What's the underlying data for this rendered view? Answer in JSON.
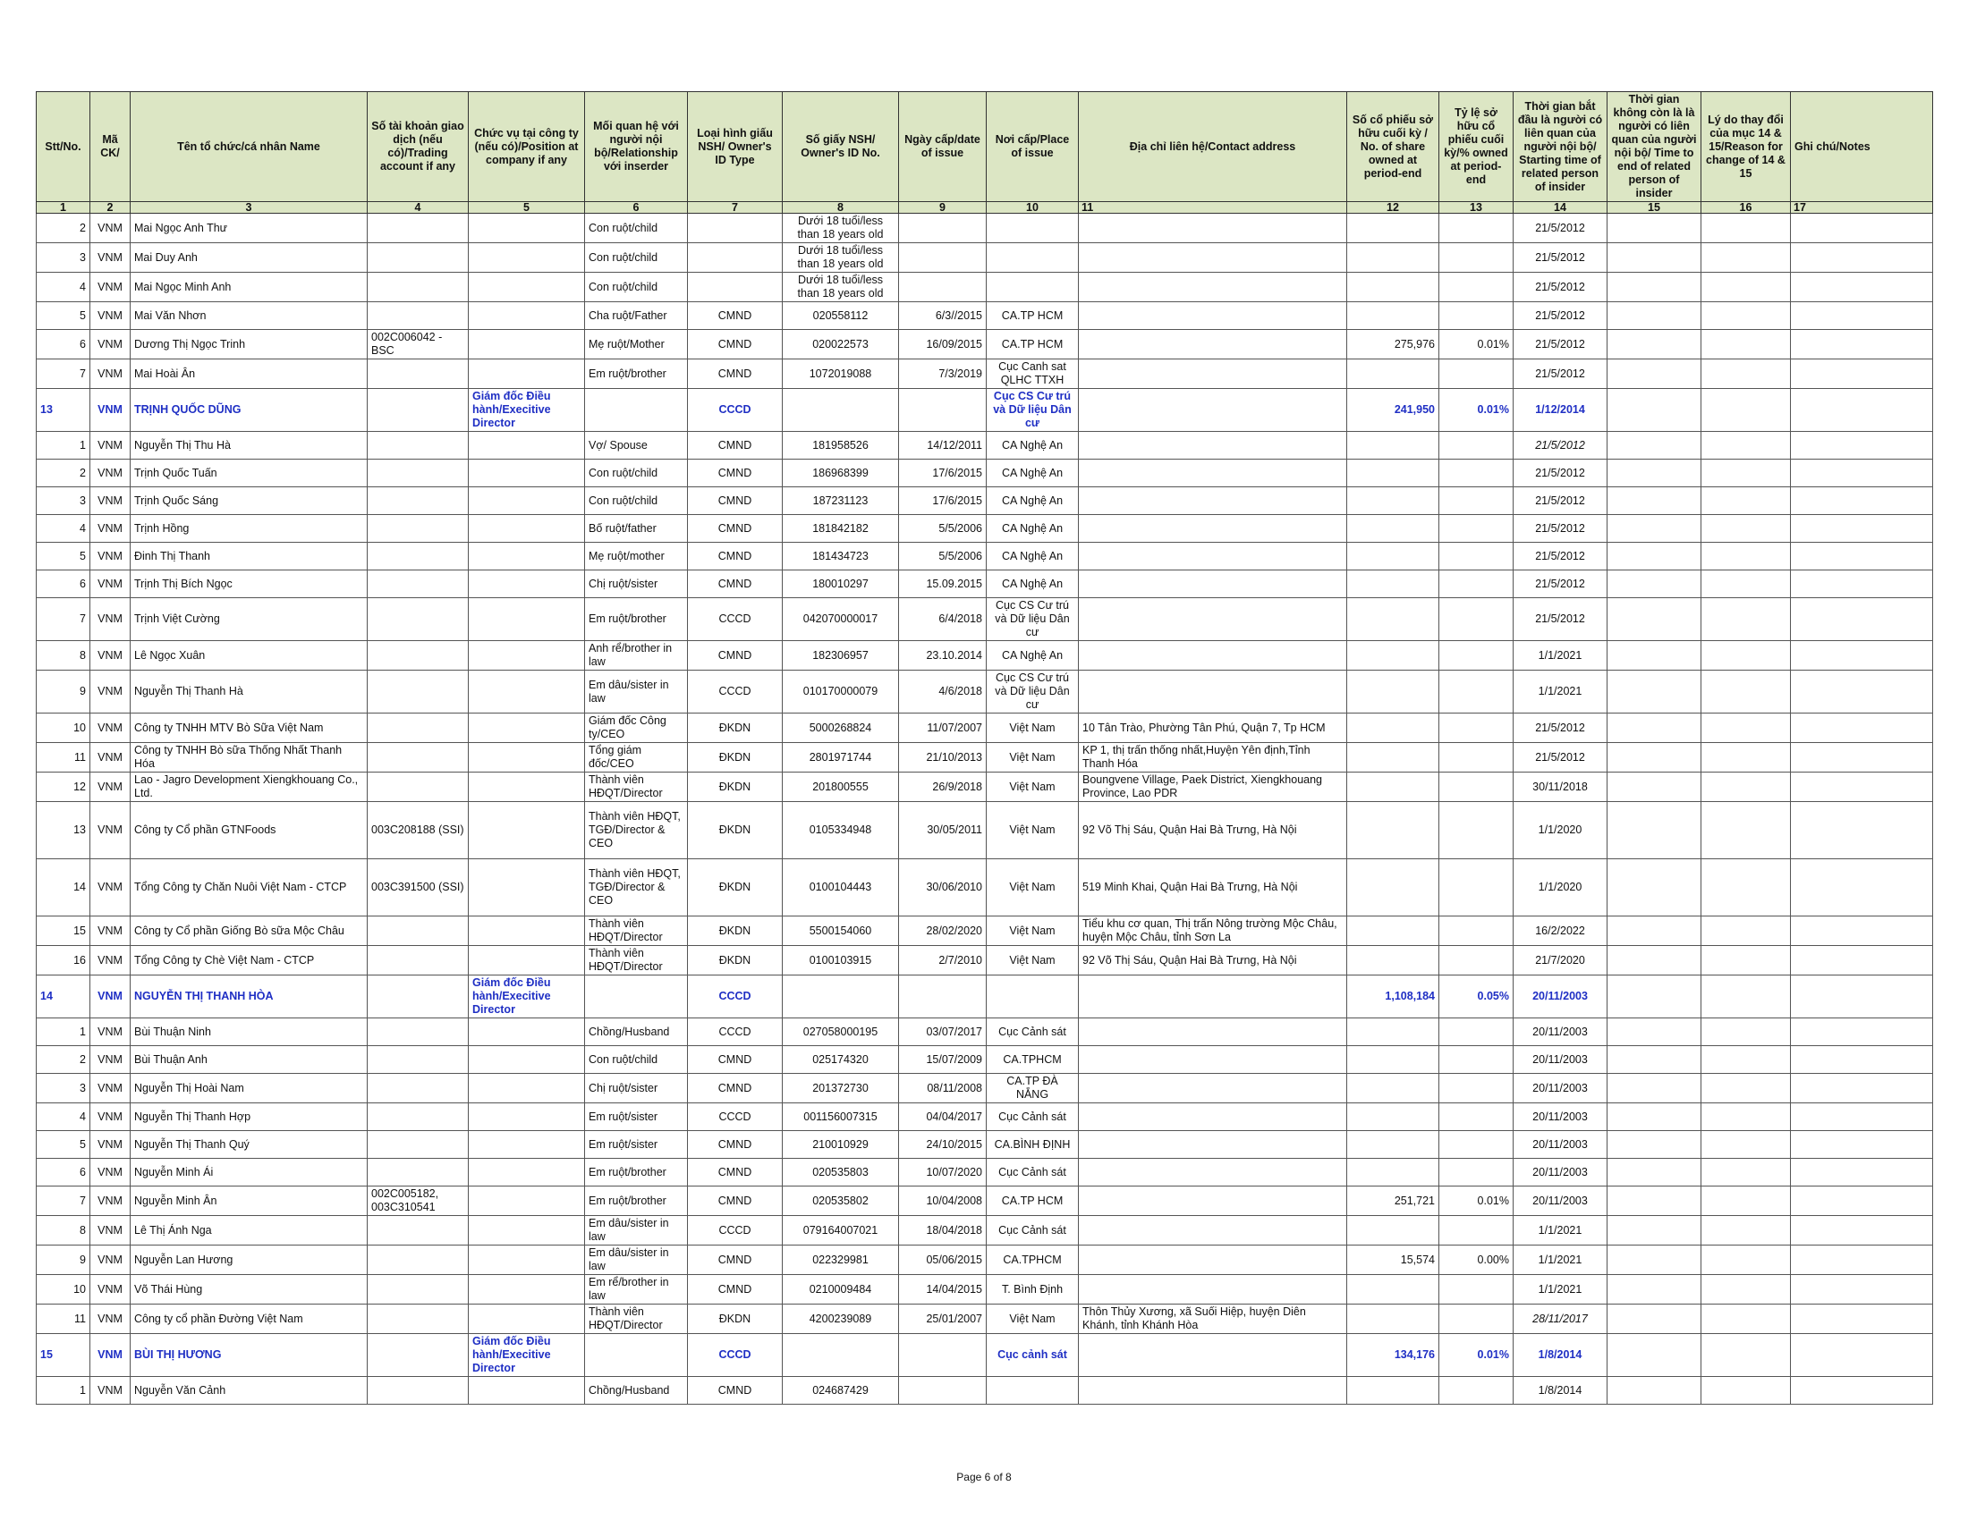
{
  "header": {
    "columns": [
      "Stt/No.",
      "Mã CK/",
      "Tên tổ chức/cá nhân Name",
      "Số tài khoản giao dịch (nếu có)/Trading account if any",
      "Chức vụ tại công ty (nếu có)/Position at company if any",
      "Mối quan hệ với người nội bộ/Relationship với inserder",
      "Loại hình giấu NSH/ Owner's ID Type",
      "Số giấy NSH/ Owner's ID No.",
      "Ngày cấp/date of issue",
      "Nơi cấp/Place of issue",
      "Địa chỉ liên hệ/Contact address",
      "Số cổ phiếu sở hữu cuối kỳ / No. of share owned at period-end",
      "Tỷ lệ sở hữu cổ phiếu cuối kỳ/% owned at period-end",
      "Thời gian bắt đầu là người có liên quan của người nội bộ/ Starting time of related person of insider",
      "Thời gian không còn là là người có liên quan của người nội bộ/ Time to end of related person of insider",
      "Lý do thay đổi của mục 14 & 15/Reason for change of 14 & 15",
      "Ghi chú/Notes"
    ],
    "numbers": [
      "1",
      "2",
      "3",
      "4",
      "5",
      "6",
      "7",
      "8",
      "9",
      "10",
      "11",
      "12",
      "13",
      "14",
      "15",
      "16",
      "17"
    ]
  },
  "rows": [
    {
      "cells": [
        "2",
        "VNM",
        "Mai Ngọc Anh Thư",
        "",
        "",
        "Con ruột/child",
        "",
        "Dưới 18 tuổi/less than 18 years old",
        "",
        "",
        "",
        "",
        "",
        "21/5/2012",
        "",
        "",
        ""
      ]
    },
    {
      "cells": [
        "3",
        "VNM",
        "Mai Duy Anh",
        "",
        "",
        "Con ruột/child",
        "",
        "Dưới 18 tuổi/less than 18 years old",
        "",
        "",
        "",
        "",
        "",
        "21/5/2012",
        "",
        "",
        ""
      ]
    },
    {
      "cells": [
        "4",
        "VNM",
        "Mai Ngọc Minh Anh",
        "",
        "",
        "Con ruột/child",
        "",
        "Dưới 18 tuổi/less than 18 years old",
        "",
        "",
        "",
        "",
        "",
        "21/5/2012",
        "",
        "",
        ""
      ]
    },
    {
      "cells": [
        "5",
        "VNM",
        "Mai Văn Nhơn",
        "",
        "",
        "Cha ruột/Father",
        "CMND",
        "020558112",
        "6/3//2015",
        "CA.TP HCM",
        "",
        "",
        "",
        "21/5/2012",
        "",
        "",
        ""
      ]
    },
    {
      "cells": [
        "6",
        "VNM",
        "Dương Thị Ngọc Trinh",
        "002C006042 - BSC",
        "",
        "Mẹ ruột/Mother",
        "CMND",
        "020022573",
        "16/09/2015",
        "CA.TP HCM",
        "",
        "275,976",
        "0.01%",
        "21/5/2012",
        "",
        "",
        ""
      ]
    },
    {
      "cells": [
        "7",
        "VNM",
        "Mai Hoài Ân",
        "",
        "",
        "Em ruột/brother",
        "CMND",
        "1072019088",
        "7/3/2019",
        "Cục Canh sat QLHC TTXH",
        "",
        "",
        "",
        "21/5/2012",
        "",
        "",
        ""
      ]
    },
    {
      "insider": true,
      "cells": [
        "13",
        "VNM",
        "TRỊNH QUỐC DŨNG",
        "",
        "Giám đốc Điều hành/Execitive Director",
        "",
        "CCCD",
        "",
        "",
        "Cục CS Cư trú và Dữ liệu Dân cư",
        "",
        "241,950",
        "0.01%",
        "1/12/2014",
        "",
        "",
        ""
      ]
    },
    {
      "cells": [
        "1",
        "VNM",
        "Nguyễn Thị Thu Hà",
        "",
        "",
        "Vợ/ Spouse",
        "CMND",
        "181958526",
        "14/12/2011",
        "CA Nghệ An",
        "",
        "",
        "",
        "21/5/2012",
        "",
        "",
        ""
      ],
      "italic14": true
    },
    {
      "cells": [
        "2",
        "VNM",
        "Trịnh Quốc Tuấn",
        "",
        "",
        "Con ruột/child",
        "CMND",
        "186968399",
        "17/6/2015",
        "CA Nghệ An",
        "",
        "",
        "",
        "21/5/2012",
        "",
        "",
        ""
      ]
    },
    {
      "cells": [
        "3",
        "VNM",
        "Trịnh Quốc Sáng",
        "",
        "",
        "Con ruột/child",
        "CMND",
        "187231123",
        "17/6/2015",
        "CA Nghệ An",
        "",
        "",
        "",
        "21/5/2012",
        "",
        "",
        ""
      ]
    },
    {
      "cells": [
        "4",
        "VNM",
        "Trịnh Hồng",
        "",
        "",
        "Bố ruột/father",
        "CMND",
        "181842182",
        "5/5/2006",
        "CA Nghệ An",
        "",
        "",
        "",
        "21/5/2012",
        "",
        "",
        ""
      ]
    },
    {
      "cells": [
        "5",
        "VNM",
        "Đinh Thị Thanh",
        "",
        "",
        "Mẹ ruột/mother",
        "CMND",
        "181434723",
        "5/5/2006",
        "CA Nghệ An",
        "",
        "",
        "",
        "21/5/2012",
        "",
        "",
        ""
      ]
    },
    {
      "cells": [
        "6",
        "VNM",
        "Trịnh Thị  Bích Ngọc",
        "",
        "",
        "Chị ruột/sister",
        "CMND",
        "180010297",
        "15.09.2015",
        "CA Nghệ An",
        "",
        "",
        "",
        "21/5/2012",
        "",
        "",
        ""
      ]
    },
    {
      "cells": [
        "7",
        "VNM",
        "Trịnh Việt Cường",
        "",
        "",
        "Em ruột/brother",
        "CCCD",
        "042070000017",
        "6/4/2018",
        "Cục CS Cư trú và Dữ liệu Dân cư",
        "",
        "",
        "",
        "21/5/2012",
        "",
        "",
        ""
      ]
    },
    {
      "cells": [
        "8",
        "VNM",
        "Lê Ngọc Xuân",
        "",
        "",
        "Anh rể/brother in law",
        "CMND",
        "182306957",
        "23.10.2014",
        "CA Nghệ An",
        "",
        "",
        "",
        "1/1/2021",
        "",
        "",
        ""
      ]
    },
    {
      "cells": [
        "9",
        "VNM",
        "Nguyễn Thị Thanh Hà",
        "",
        "",
        "Em dâu/sister in law",
        "CCCD",
        "010170000079",
        "4/6/2018",
        "Cục CS Cư trú và Dữ liệu Dân cư",
        "",
        "",
        "",
        "1/1/2021",
        "",
        "",
        ""
      ]
    },
    {
      "cells": [
        "10",
        "VNM",
        "Công ty TNHH MTV Bò Sữa Việt Nam",
        "",
        "",
        "Giám đốc Công ty/CEO",
        "ĐKDN",
        "5000268824",
        "11/07/2007",
        "Việt Nam",
        "10 Tân Trào, Phường Tân Phú, Quận 7, Tp HCM",
        "",
        "",
        "21/5/2012",
        "",
        "",
        ""
      ]
    },
    {
      "cells": [
        "11",
        "VNM",
        "Công ty TNHH Bò sữa Thống Nhất Thanh Hóa",
        "",
        "",
        "Tổng giám đốc/CEO",
        "ĐKDN",
        "2801971744",
        "21/10/2013",
        "Việt Nam",
        "KP 1, thị trấn thống nhất,Huyện Yên định,Tỉnh Thanh Hóa",
        "",
        "",
        "21/5/2012",
        "",
        "",
        ""
      ]
    },
    {
      "cells": [
        "12",
        "VNM",
        "Lao - Jagro Development Xiengkhouang Co., Ltd.",
        "",
        "",
        "Thành viên HĐQT/Director",
        "ĐKDN",
        "201800555",
        "26/9/2018",
        "Việt Nam",
        "Boungvene Village, Paek District, Xiengkhouang Province, Lao PDR",
        "",
        "",
        "30/11/2018",
        "",
        "",
        ""
      ]
    },
    {
      "cells": [
        "13",
        "VNM",
        "Công ty Cổ phần GTNFoods",
        "003C208188 (SSI)",
        "",
        "Thành viên HĐQT, TGĐ/Director & CEO",
        "ĐKDN",
        "0105334948",
        "30/05/2011",
        "Việt Nam",
        "92 Võ Thị Sáu, Quận Hai Bà Trưng, Hà Nội",
        "",
        "",
        "1/1/2020",
        "",
        "",
        ""
      ]
    },
    {
      "cells": [
        "14",
        "VNM",
        "Tổng Công ty Chăn Nuôi Việt Nam - CTCP",
        "003C391500 (SSI)",
        "",
        "Thành viên HĐQT, TGĐ/Director & CEO",
        "ĐKDN",
        "0100104443",
        "30/06/2010",
        "Việt Nam",
        "519 Minh Khai, Quận Hai Bà Trưng, Hà Nội",
        "",
        "",
        "1/1/2020",
        "",
        "",
        ""
      ]
    },
    {
      "cells": [
        "15",
        "VNM",
        "Công ty Cổ phần Giống Bò sữa Mộc Châu",
        "",
        "",
        "Thành viên HĐQT/Director",
        "ĐKDN",
        "5500154060",
        "28/02/2020",
        "Việt Nam",
        "Tiểu khu cơ quan, Thị trấn Nông trường Mộc Châu, huyện Mộc Châu, tỉnh Sơn La",
        "",
        "",
        "16/2/2022",
        "",
        "",
        ""
      ]
    },
    {
      "cells": [
        "16",
        "VNM",
        "Tổng Công ty Chè Việt Nam - CTCP",
        "",
        "",
        "Thành viên HĐQT/Director",
        "ĐKDN",
        "0100103915",
        "2/7/2010",
        "Việt Nam",
        "92 Võ Thị Sáu, Quận Hai Bà Trưng, Hà Nội",
        "",
        "",
        "21/7/2020",
        "",
        "",
        ""
      ]
    },
    {
      "insider": true,
      "cells": [
        "14",
        "VNM",
        "NGUYỄN THỊ THANH HÒA",
        "",
        "Giám đốc Điều hành/Execitive Director",
        "",
        "CCCD",
        "",
        "",
        "",
        "",
        "1,108,184",
        "0.05%",
        "20/11/2003",
        "",
        "",
        ""
      ]
    },
    {
      "cells": [
        "1",
        "VNM",
        "Bùi Thuận Ninh",
        "",
        "",
        "Chồng/Husband",
        "CCCD",
        "027058000195",
        "03/07/2017",
        "Cục Cảnh sát",
        "",
        "",
        "",
        "20/11/2003",
        "",
        "",
        ""
      ]
    },
    {
      "cells": [
        "2",
        "VNM",
        "Bùi Thuận Anh",
        "",
        "",
        "Con ruột/child",
        "CMND",
        "025174320",
        "15/07/2009",
        "CA.TPHCM",
        "",
        "",
        "",
        "20/11/2003",
        "",
        "",
        ""
      ]
    },
    {
      "cells": [
        "3",
        "VNM",
        "Nguyễn Thị Hoài Nam",
        "",
        "",
        "Chị ruột/sister",
        "CMND",
        "201372730",
        "08/11/2008",
        "CA.TP ĐÀ NẴNG",
        "",
        "",
        "",
        "20/11/2003",
        "",
        "",
        ""
      ]
    },
    {
      "cells": [
        "4",
        "VNM",
        "Nguyễn Thị Thanh Hợp",
        "",
        "",
        "Em ruột/sister",
        "CCCD",
        "001156007315",
        "04/04/2017",
        "Cục Cảnh sát",
        "",
        "",
        "",
        "20/11/2003",
        "",
        "",
        ""
      ]
    },
    {
      "cells": [
        "5",
        "VNM",
        "Nguyễn Thị Thanh Quý",
        "",
        "",
        "Em ruột/sister",
        "CMND",
        "210010929",
        "24/10/2015",
        "CA.BÌNH ĐỊNH",
        "",
        "",
        "",
        "20/11/2003",
        "",
        "",
        ""
      ]
    },
    {
      "cells": [
        "6",
        "VNM",
        "Nguyễn Minh Ái",
        "",
        "",
        "Em ruột/brother",
        "CMND",
        "020535803",
        "10/07/2020",
        "Cục Cảnh sát",
        "",
        "",
        "",
        "20/11/2003",
        "",
        "",
        ""
      ]
    },
    {
      "cells": [
        "7",
        "VNM",
        "Nguyễn Minh Ân",
        "002C005182, 003C310541",
        "",
        "Em ruột/brother",
        "CMND",
        "020535802",
        "10/04/2008",
        "CA.TP HCM",
        "",
        "251,721",
        "0.01%",
        "20/11/2003",
        "",
        "",
        ""
      ]
    },
    {
      "cells": [
        "8",
        "VNM",
        "Lê Thị Ánh Nga",
        "",
        "",
        "Em dâu/sister in law",
        "CCCD",
        "079164007021",
        "18/04/2018",
        "Cục Cảnh sát",
        "",
        "",
        "",
        "1/1/2021",
        "",
        "",
        ""
      ]
    },
    {
      "cells": [
        "9",
        "VNM",
        "Nguyễn Lan Hương",
        "",
        "",
        "Em dâu/sister in law",
        "CMND",
        "022329981",
        "05/06/2015",
        "CA.TPHCM",
        "",
        "15,574",
        "0.00%",
        "1/1/2021",
        "",
        "",
        ""
      ]
    },
    {
      "cells": [
        "10",
        "VNM",
        "Võ Thái Hùng",
        "",
        "",
        "Em rể/brother in law",
        "CMND",
        "0210009484",
        "14/04/2015",
        "T. Bình Định",
        "",
        "",
        "",
        "1/1/2021",
        "",
        "",
        ""
      ]
    },
    {
      "cells": [
        "11",
        "VNM",
        "Công ty cổ phần Đường Việt Nam",
        "",
        "",
        "Thành viên HĐQT/Director",
        "ĐKDN",
        "4200239089",
        "25/01/2007",
        "Việt Nam",
        "Thôn Thủy Xương, xã Suối Hiệp, huyện Diên Khánh, tỉnh Khánh Hòa",
        "",
        "",
        "28/11/2017",
        "",
        "",
        ""
      ],
      "italic14": true
    },
    {
      "insider": true,
      "cells": [
        "15",
        "VNM",
        "BÙI THỊ HƯƠNG",
        "",
        "Giám đốc Điều hành/Execitive Director",
        "",
        "CCCD",
        "",
        "",
        "Cục cảnh sát",
        "",
        "134,176",
        "0.01%",
        "1/8/2014",
        "",
        "",
        ""
      ]
    },
    {
      "cells": [
        "1",
        "VNM",
        "Nguyễn Văn Cảnh",
        "",
        "",
        "Chồng/Husband",
        "CMND",
        "024687429",
        "",
        "",
        "",
        "",
        "",
        "1/8/2014",
        "",
        "",
        ""
      ]
    }
  ],
  "footer": {
    "page": "Page 6 of 8"
  }
}
